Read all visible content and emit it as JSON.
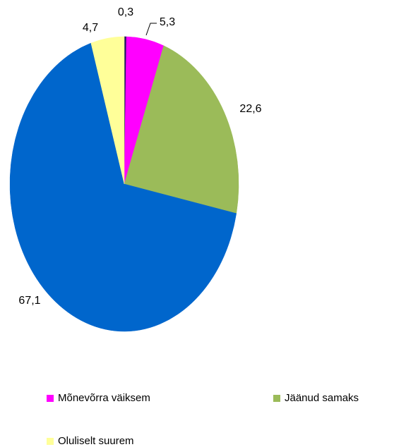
{
  "chart_data": {
    "type": "pie",
    "categories": [
      null,
      "Mõnevõrra väiksem",
      "Jäänud samaks",
      null,
      "Oluliselt suurem"
    ],
    "values": [
      0.3,
      5.3,
      22.6,
      67.1,
      4.7
    ],
    "value_labels": [
      "0,3",
      "5,3",
      "22,6",
      "67,1",
      "4,7"
    ],
    "colors": [
      "#1a1a5e",
      "#ff00ff",
      "#9bbb59",
      "#0066cc",
      "#ffff99"
    ]
  }
}
